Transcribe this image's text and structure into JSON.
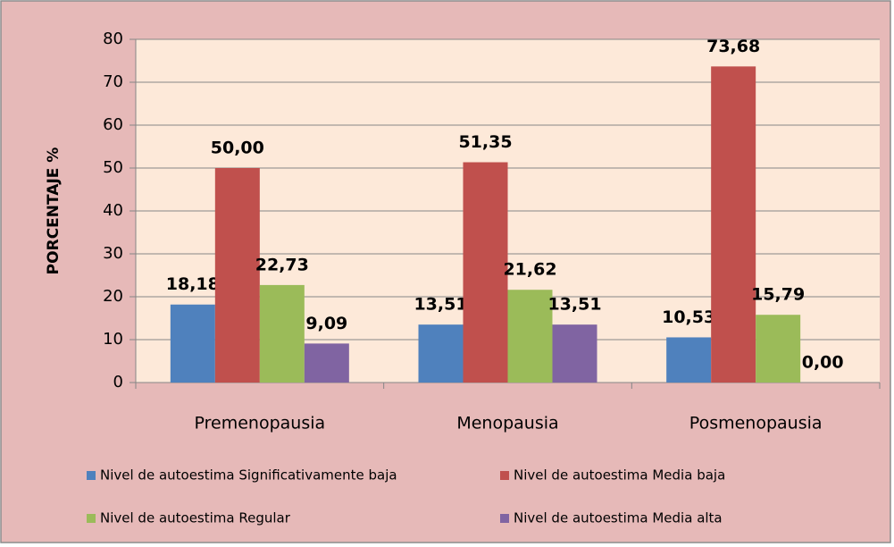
{
  "chart_data": {
    "type": "bar",
    "categories": [
      "Premenopausia",
      "Menopausia",
      "Posmenopausia"
    ],
    "y_label": "PORCENTAJE %",
    "ylim": [
      0,
      80
    ],
    "yticks": [
      0,
      10,
      20,
      30,
      40,
      50,
      60,
      70,
      80
    ],
    "grid": true,
    "legend": "bottom",
    "series": [
      {
        "name": "Nivel de autoestima Significativamente baja",
        "color": "#4f81bd",
        "values": [
          18.18,
          13.51,
          10.53
        ],
        "value_labels": [
          "18,18",
          "13,51",
          "10,53"
        ]
      },
      {
        "name": "Nivel de autoestima Media baja",
        "color": "#c0504d",
        "values": [
          50.0,
          51.35,
          73.68
        ],
        "value_labels": [
          "50,00",
          "51,35",
          "73,68"
        ]
      },
      {
        "name": "Nivel de autoestima Regular",
        "color": "#9bbb59",
        "values": [
          22.73,
          21.62,
          15.79
        ],
        "value_labels": [
          "22,73",
          "21,62",
          "15,79"
        ]
      },
      {
        "name": "Nivel de autoestima Media alta",
        "color": "#8064a2",
        "values": [
          9.09,
          13.51,
          0.0
        ],
        "value_labels": [
          "9,09",
          "13,51",
          "0,00"
        ]
      }
    ]
  }
}
